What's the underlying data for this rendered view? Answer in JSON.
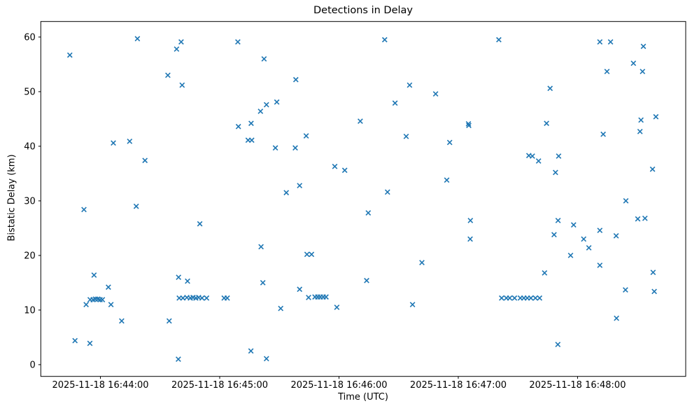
{
  "figure": {
    "title": "Detections in Delay",
    "xlabel": "Time (UTC)",
    "ylabel": "Bistatic Delay (km)"
  },
  "chart_data": {
    "type": "scatter",
    "title": "Detections in Delay",
    "xlabel": "Time (UTC)",
    "ylabel": "Bistatic Delay (km)",
    "legend": "none",
    "grid": "off",
    "marker": "x",
    "marker_color": "#1f77b4",
    "axis_color": "#000000",
    "x_unit": "seconds after 2025-11-18 16:44:00 UTC",
    "xlim": [
      -30.0,
      294.4
    ],
    "ylim": [
      -2.15,
      62.85
    ],
    "x_ticks": [
      {
        "t": 0,
        "label": "2025-11-18 16:44:00"
      },
      {
        "t": 60,
        "label": "2025-11-18 16:45:00"
      },
      {
        "t": 120,
        "label": "2025-11-18 16:46:00"
      },
      {
        "t": 180,
        "label": "2025-11-18 16:47:00"
      },
      {
        "t": 240,
        "label": "2025-11-18 16:48:00"
      }
    ],
    "y_ticks": [
      0,
      10,
      20,
      30,
      40,
      50,
      60
    ],
    "points": [
      [
        -15.4,
        56.7
      ],
      [
        -12.8,
        4.4
      ],
      [
        -8.3,
        28.4
      ],
      [
        -7.2,
        11.0
      ],
      [
        -5.3,
        3.9
      ],
      [
        -5.2,
        11.9
      ],
      [
        -3.7,
        11.9
      ],
      [
        -3.2,
        16.4
      ],
      [
        -2.5,
        12.0
      ],
      [
        -1.3,
        12.0
      ],
      [
        -0.2,
        11.9
      ],
      [
        1.0,
        11.9
      ],
      [
        4.0,
        14.2
      ],
      [
        5.3,
        11.0
      ],
      [
        6.5,
        40.6
      ],
      [
        10.7,
        8.0
      ],
      [
        14.7,
        40.9
      ],
      [
        18.0,
        29.0
      ],
      [
        18.6,
        59.7
      ],
      [
        22.4,
        37.4
      ],
      [
        33.9,
        53.0
      ],
      [
        34.6,
        8.0
      ],
      [
        38.3,
        57.8
      ],
      [
        39.2,
        1.0
      ],
      [
        39.3,
        16.0
      ],
      [
        39.6,
        12.2
      ],
      [
        40.6,
        59.1
      ],
      [
        41.1,
        51.2
      ],
      [
        41.5,
        12.2
      ],
      [
        43.5,
        12.3
      ],
      [
        43.8,
        15.3
      ],
      [
        45.2,
        12.2
      ],
      [
        46.6,
        12.3
      ],
      [
        48.0,
        12.2
      ],
      [
        49.4,
        12.3
      ],
      [
        50.0,
        25.8
      ],
      [
        51.1,
        12.2
      ],
      [
        53.4,
        12.2
      ],
      [
        62.2,
        12.2
      ],
      [
        63.8,
        12.2
      ],
      [
        69.1,
        59.1
      ],
      [
        69.4,
        43.6
      ],
      [
        74.3,
        41.1
      ],
      [
        75.7,
        2.5
      ],
      [
        75.8,
        44.2
      ],
      [
        76.1,
        41.1
      ],
      [
        80.5,
        46.4
      ],
      [
        80.8,
        21.6
      ],
      [
        81.7,
        15.0
      ],
      [
        82.3,
        56.0
      ],
      [
        83.5,
        47.6
      ],
      [
        83.5,
        1.1
      ],
      [
        88.0,
        39.7
      ],
      [
        88.7,
        48.1
      ],
      [
        90.7,
        10.3
      ],
      [
        93.5,
        31.5
      ],
      [
        98.0,
        39.7
      ],
      [
        98.3,
        52.2
      ],
      [
        100.2,
        32.8
      ],
      [
        100.2,
        13.8
      ],
      [
        103.5,
        41.9
      ],
      [
        103.9,
        20.2
      ],
      [
        104.7,
        12.3
      ],
      [
        106.2,
        20.2
      ],
      [
        107.9,
        12.4
      ],
      [
        109.3,
        12.4
      ],
      [
        110.6,
        12.4
      ],
      [
        112.1,
        12.4
      ],
      [
        113.5,
        12.4
      ],
      [
        117.9,
        36.3
      ],
      [
        118.9,
        10.5
      ],
      [
        122.9,
        35.6
      ],
      [
        130.7,
        44.6
      ],
      [
        133.9,
        15.4
      ],
      [
        134.7,
        27.8
      ],
      [
        143.0,
        59.5
      ],
      [
        144.4,
        31.6
      ],
      [
        148.2,
        47.9
      ],
      [
        153.8,
        41.8
      ],
      [
        155.5,
        51.2
      ],
      [
        157.0,
        11.0
      ],
      [
        161.7,
        18.7
      ],
      [
        168.6,
        49.6
      ],
      [
        174.2,
        33.8
      ],
      [
        175.7,
        40.7
      ],
      [
        185.1,
        44.1
      ],
      [
        185.3,
        43.8
      ],
      [
        186.0,
        23.0
      ],
      [
        186.1,
        26.4
      ],
      [
        200.4,
        59.5
      ],
      [
        201.8,
        12.2
      ],
      [
        204.2,
        12.2
      ],
      [
        205.9,
        12.2
      ],
      [
        208.3,
        12.2
      ],
      [
        211.2,
        12.2
      ],
      [
        213.0,
        12.2
      ],
      [
        214.7,
        12.2
      ],
      [
        215.5,
        38.3
      ],
      [
        216.5,
        12.2
      ],
      [
        217.3,
        38.2
      ],
      [
        218.8,
        12.2
      ],
      [
        220.4,
        37.3
      ],
      [
        220.9,
        12.2
      ],
      [
        223.4,
        16.8
      ],
      [
        224.4,
        44.2
      ],
      [
        226.2,
        50.6
      ],
      [
        228.2,
        23.8
      ],
      [
        228.9,
        35.2
      ],
      [
        230.1,
        3.7
      ],
      [
        230.2,
        26.4
      ],
      [
        230.5,
        38.2
      ],
      [
        236.5,
        20.0
      ],
      [
        238.0,
        25.6
      ],
      [
        243.1,
        23.0
      ],
      [
        245.7,
        21.4
      ],
      [
        251.2,
        24.6
      ],
      [
        251.2,
        59.1
      ],
      [
        251.2,
        18.2
      ],
      [
        252.9,
        42.2
      ],
      [
        254.8,
        53.7
      ],
      [
        256.6,
        59.1
      ],
      [
        259.4,
        23.6
      ],
      [
        259.6,
        8.5
      ],
      [
        264.1,
        13.7
      ],
      [
        264.3,
        30.0
      ],
      [
        268.1,
        55.2
      ],
      [
        270.3,
        26.7
      ],
      [
        271.4,
        42.7
      ],
      [
        271.9,
        44.8
      ],
      [
        272.7,
        53.7
      ],
      [
        273.1,
        58.3
      ],
      [
        273.9,
        26.8
      ],
      [
        277.7,
        35.8
      ],
      [
        278.0,
        16.9
      ],
      [
        278.6,
        13.4
      ],
      [
        279.4,
        45.4
      ]
    ]
  }
}
